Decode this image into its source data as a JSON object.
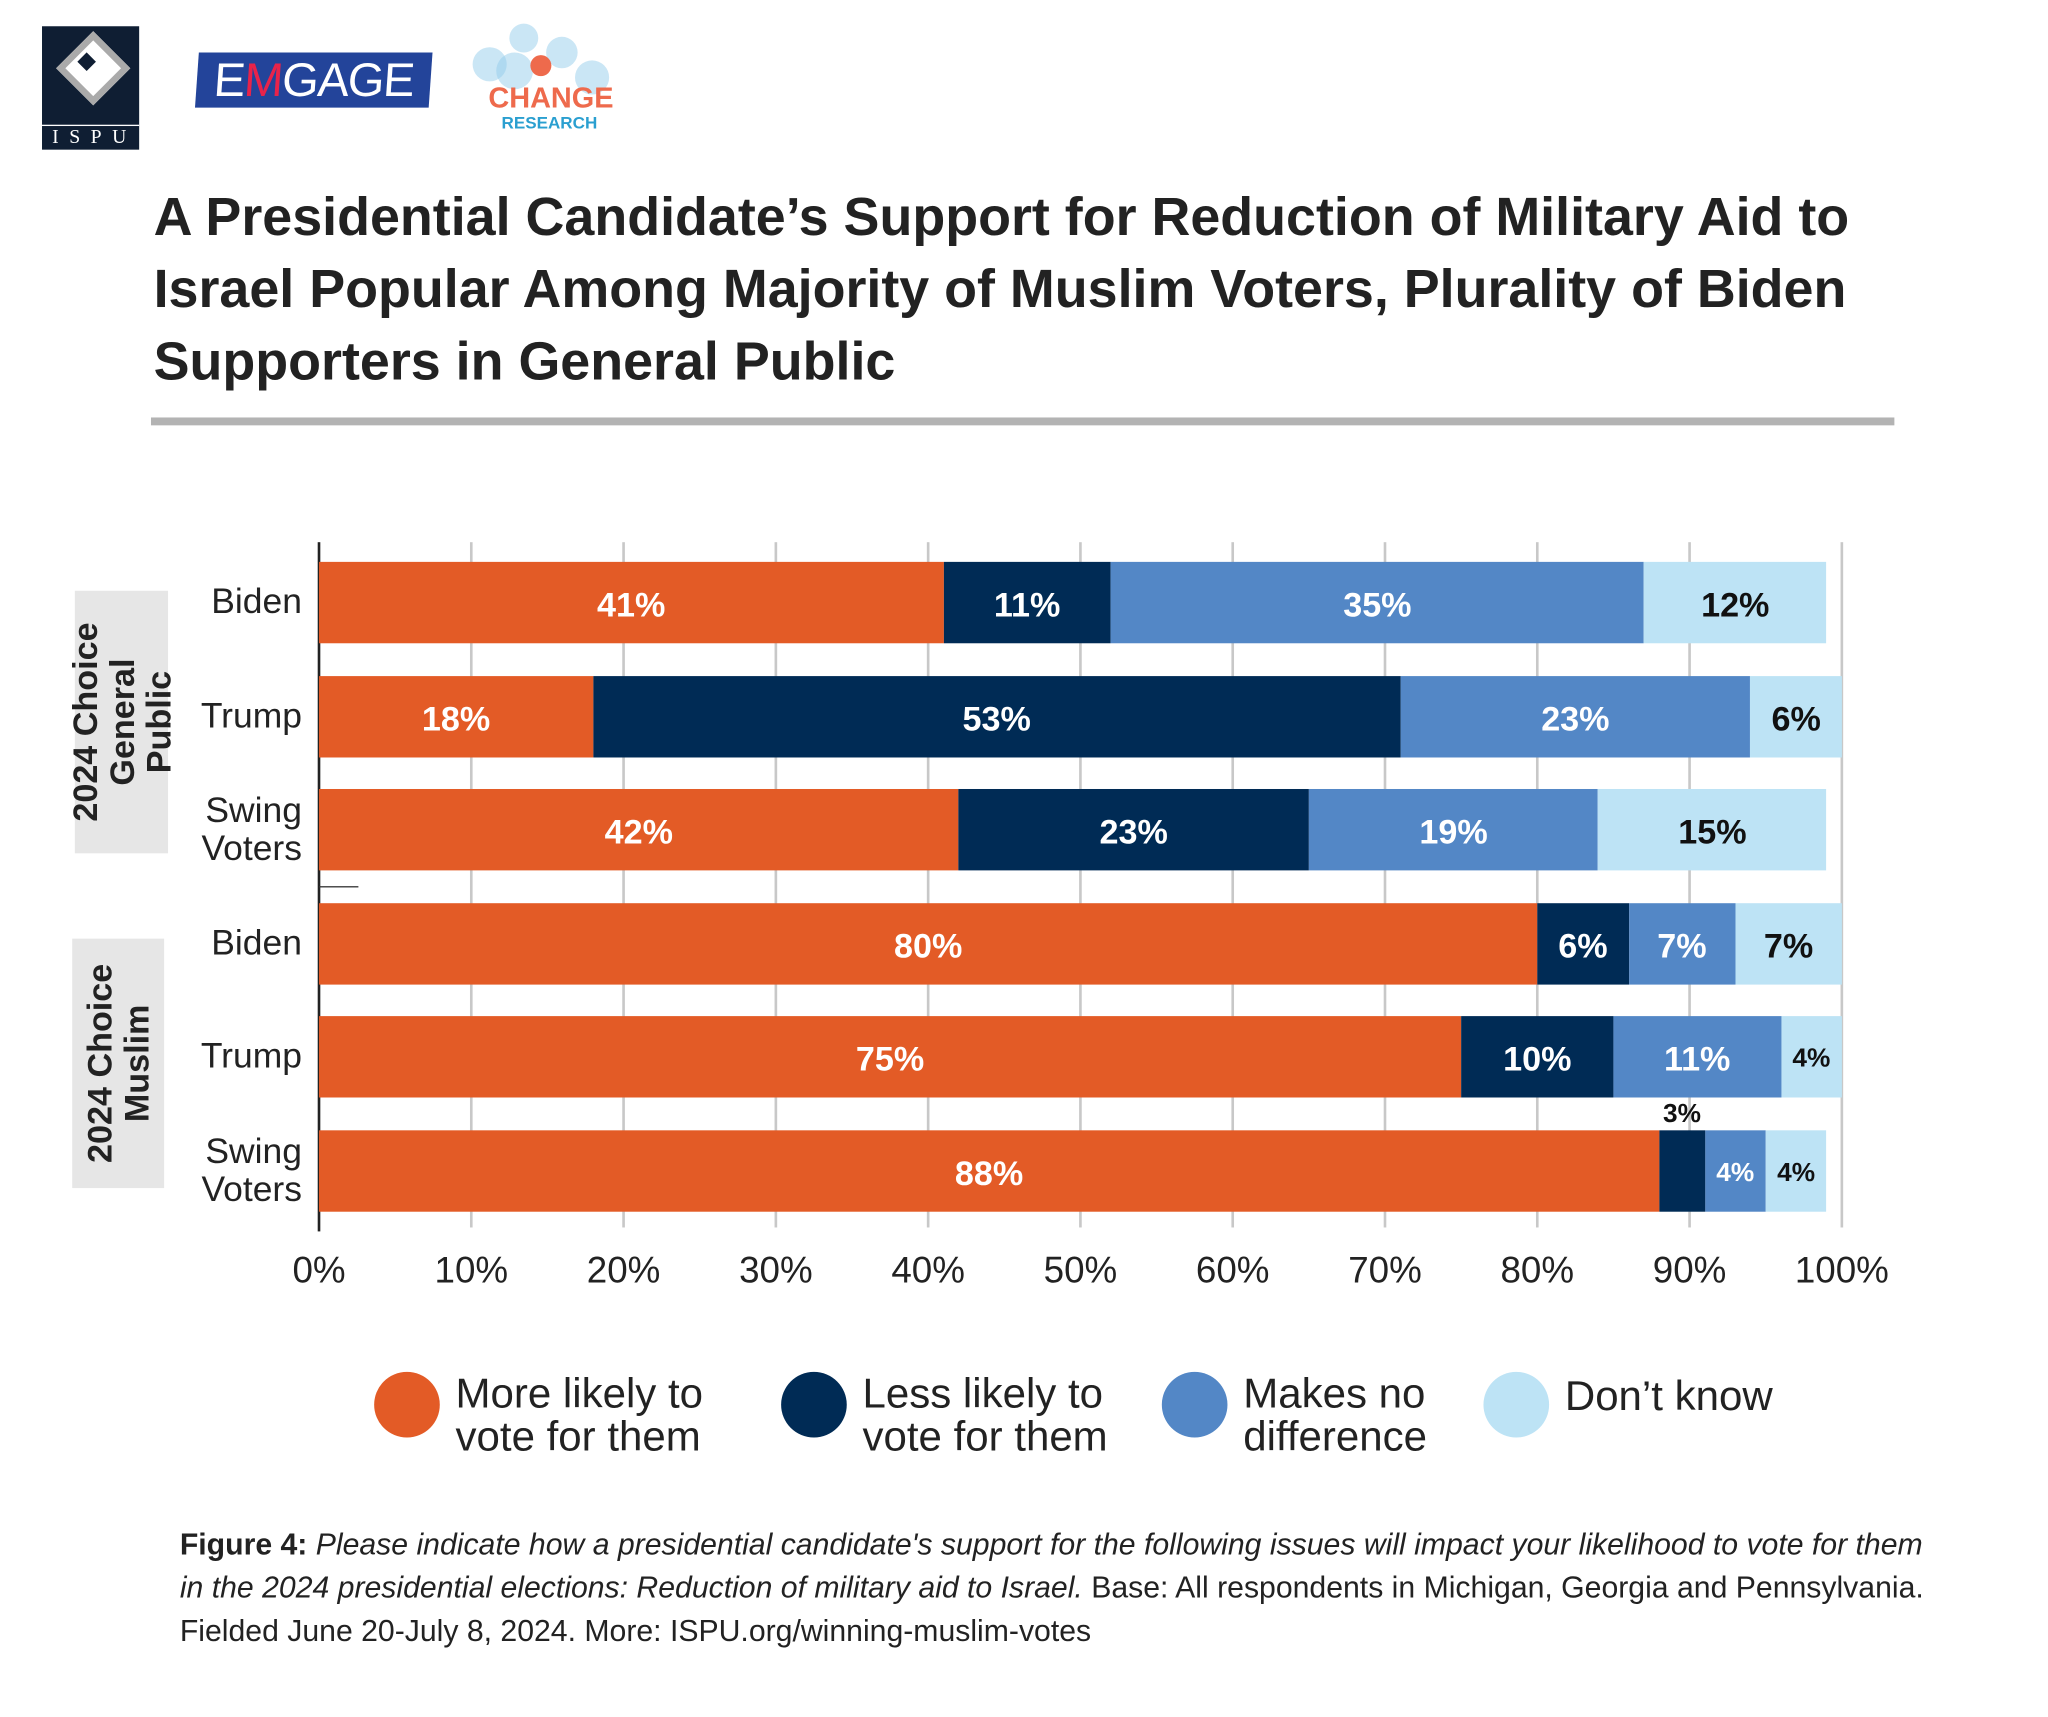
{
  "logos": {
    "ispu": "ISPU",
    "emgage": "EMGAGE",
    "change": "CHANGE",
    "change_sub": "RESEARCH"
  },
  "colors": {
    "more_likely": "#E35B26",
    "less_likely": "#002B55",
    "no_difference": "#5387C6",
    "dont_know": "#BDE3F5"
  },
  "chart_data": {
    "type": "bar",
    "orientation": "horizontal",
    "stacked": true,
    "title": "A Presidential Candidate’s Support for Reduction of Military Aid to Israel Popular Among Majority of Muslim Voters, Plurality of Biden Supporters in General Public",
    "groups": [
      {
        "label": "2024 Choice General Public",
        "categories": [
          "Biden",
          "Trump",
          "Swing Voters"
        ]
      },
      {
        "label": "2024 Choice Muslim",
        "categories": [
          "Biden",
          "Trump",
          "Swing Voters"
        ]
      }
    ],
    "categories": [
      "Biden",
      "Trump",
      "Swing Voters",
      "Biden",
      "Trump",
      "Swing Voters"
    ],
    "series": [
      {
        "name": "More likely to vote for them",
        "values": [
          41,
          18,
          42,
          80,
          75,
          88
        ]
      },
      {
        "name": "Less likely to vote for them",
        "values": [
          11,
          53,
          23,
          6,
          10,
          3
        ]
      },
      {
        "name": "Makes no difference",
        "values": [
          35,
          23,
          19,
          7,
          11,
          4
        ]
      },
      {
        "name": "Don’t know",
        "values": [
          12,
          6,
          15,
          7,
          4,
          4
        ]
      }
    ],
    "xlim": [
      0,
      100
    ],
    "xticks": [
      "0%",
      "10%",
      "20%",
      "30%",
      "40%",
      "50%",
      "60%",
      "70%",
      "80%",
      "90%",
      "100%"
    ],
    "grid": true,
    "legend": "bottom"
  },
  "caption": {
    "label": "Figure 4:",
    "question": "Please indicate how a presidential candidate's support for the following issues will impact your likelihood to vote for them in the 2024 presidential elections: Reduction of military aid to Israel.",
    "rest": "Base: All respondents in Michigan, Georgia and Pennsylvania. Fielded June 20-July 8, 2024. More: ISPU.org/winning-muslim-votes"
  }
}
